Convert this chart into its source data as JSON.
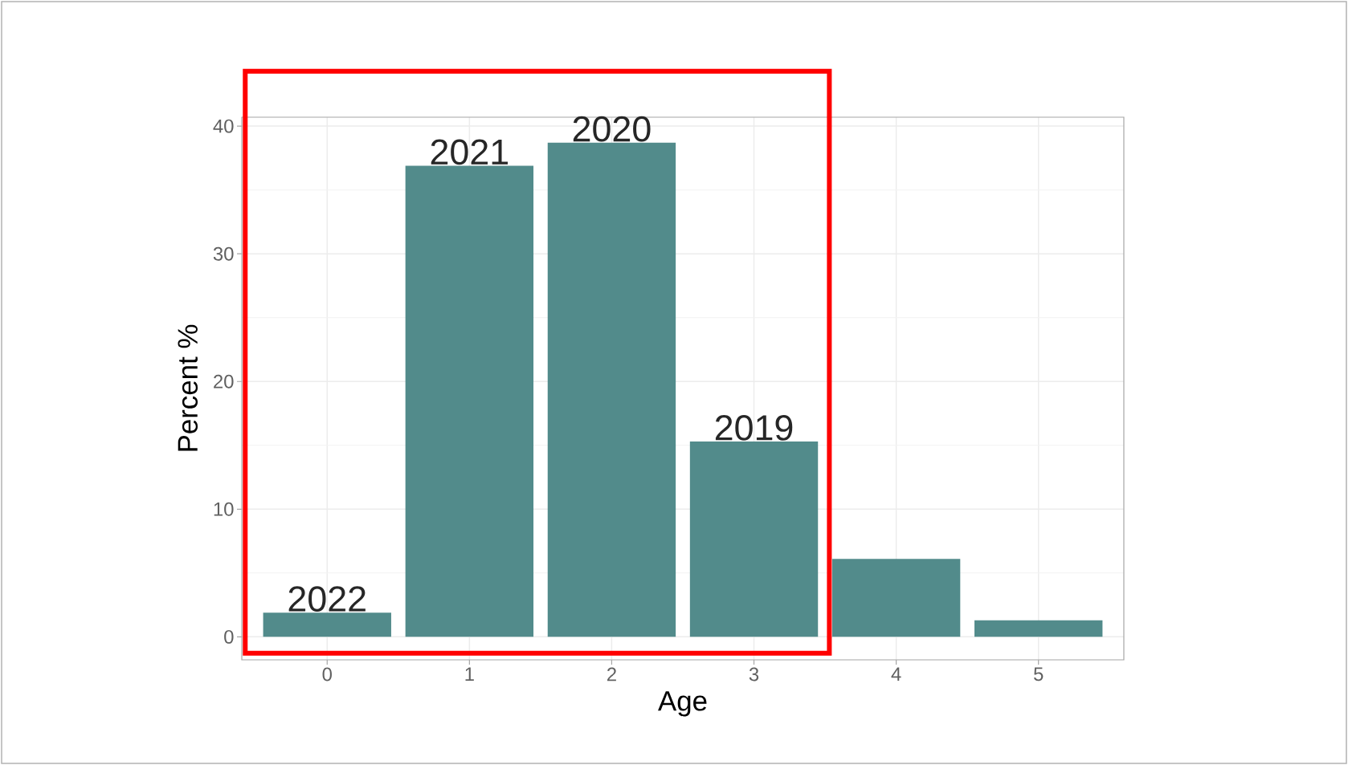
{
  "chart_data": {
    "type": "bar",
    "xlabel": "Age",
    "ylabel": "Percent  %",
    "categories": [
      "0",
      "1",
      "2",
      "3",
      "4",
      "5"
    ],
    "values": [
      1.9,
      36.9,
      38.7,
      15.3,
      6.1,
      1.3
    ],
    "color": "#528b8b",
    "ylim": [
      -1.8,
      40.7
    ],
    "yticks": [
      0,
      10,
      20,
      30,
      40
    ],
    "grid": true,
    "annotations": [
      {
        "text": "2022",
        "x": "0",
        "y": 1.9
      },
      {
        "text": "2021",
        "x": "1",
        "y": 36.9
      },
      {
        "text": "2020",
        "x": "2",
        "y": 38.7
      },
      {
        "text": "2019",
        "x": "3",
        "y": 15.3
      }
    ]
  }
}
